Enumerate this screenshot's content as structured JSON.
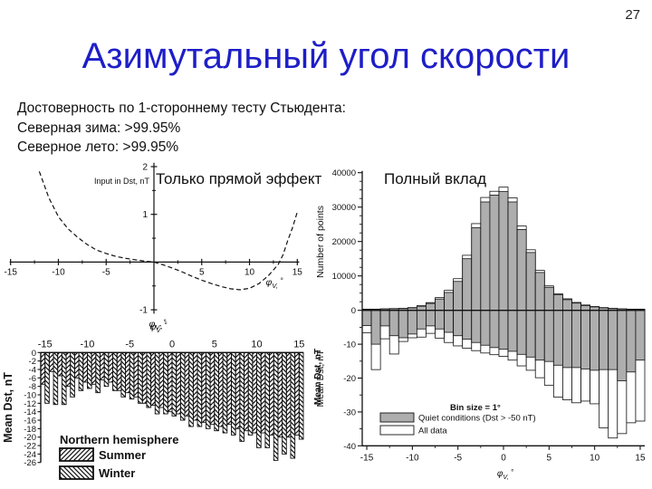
{
  "page": {
    "number": "27",
    "title": "Азимутальный угол скорости",
    "title_color": "#1e1ec8"
  },
  "stats": {
    "lines": [
      "Достоверность по 1-стороннему тесту Стьюдента:",
      "Северная зима: >99.95%",
      "Северное лето: >99.95%"
    ]
  },
  "labels": {
    "direct_effect": "Только прямой эффект",
    "full_contribution": "Полный вклад"
  },
  "chart_data": [
    {
      "id": "input_curve",
      "type": "line",
      "style": "dashed",
      "ylabel": "Input in Dst, nT",
      "xlabel": {
        "base": "φ",
        "sub": "V,",
        "suffix": " °"
      },
      "xlabel_bottom": {
        "base": "φ",
        "sub": "V'",
        "suffix": " °"
      },
      "xlim": [
        -15,
        15
      ],
      "ylim": [
        -1.1,
        2.1
      ],
      "xtick_labels": [
        "-15",
        "-10",
        "-5",
        "5",
        "10",
        "15"
      ],
      "xtick_vals": [
        -15,
        -10,
        -5,
        5,
        10,
        15
      ],
      "ytick_labels": [
        "2",
        "1",
        "-1"
      ],
      "ytick_vals": [
        2,
        1,
        -1
      ],
      "x": [
        -12,
        -11,
        -10,
        -9,
        -8,
        -7,
        -6,
        -5,
        -4,
        -3,
        -2,
        -1,
        0,
        1,
        2,
        3,
        4,
        5,
        6,
        7,
        8,
        9,
        10,
        11,
        12,
        13,
        13.5,
        14,
        14.5,
        15
      ],
      "y": [
        1.9,
        1.35,
        0.95,
        0.7,
        0.52,
        0.37,
        0.25,
        0.18,
        0.12,
        0.08,
        0.05,
        0.02,
        0,
        -0.06,
        -0.13,
        -0.21,
        -0.3,
        -0.38,
        -0.45,
        -0.51,
        -0.56,
        -0.58,
        -0.55,
        -0.45,
        -0.28,
        -0.05,
        0.15,
        0.45,
        0.72,
        1.05
      ]
    },
    {
      "id": "hemisphere_bars",
      "type": "bar",
      "ylabel": "Mean Dst, nT",
      "ylabel_right": "Mean Dst, nT",
      "xlabel": {
        "base": "φ",
        "sub": "V'",
        "suffix": " °"
      },
      "xlim": [
        -15,
        15
      ],
      "ylim": [
        -26,
        0
      ],
      "xtick_labels": [
        "-15",
        "-10",
        "-5",
        "0",
        "5",
        "10",
        "15"
      ],
      "xtick_vals": [
        -15,
        -10,
        -5,
        0,
        5,
        10,
        15
      ],
      "ytick_labels": [
        "0",
        "-2",
        "-4",
        "-6",
        "-8",
        "-10",
        "-12",
        "-14",
        "-16",
        "-18",
        "-20",
        "-22",
        "-24",
        "-26"
      ],
      "ytick_vals": [
        0,
        -2,
        -4,
        -6,
        -8,
        -10,
        -12,
        -14,
        -16,
        -18,
        -20,
        -22,
        -24,
        -26
      ],
      "legend_title": "Northern hemisphere",
      "categories": [
        -15,
        -14,
        -13,
        -12,
        -11,
        -10,
        -9,
        -8,
        -7,
        -6,
        -5,
        -4,
        -3,
        -2,
        -1,
        0,
        1,
        2,
        3,
        4,
        5,
        6,
        7,
        8,
        9,
        10,
        11,
        12,
        13,
        14,
        15
      ],
      "series": [
        {
          "name": "Summer",
          "hatch": "forward",
          "values": [
            -7.5,
            -4.5,
            -5.5,
            -8,
            -6,
            -7,
            -7.5,
            -6.5,
            -7,
            -9,
            -9.5,
            -10.5,
            -12,
            -12.5,
            -13,
            -14,
            -14.5,
            -15,
            -16,
            -16.5,
            -17,
            -17.5,
            -17,
            -18,
            -18.5,
            -19,
            -19,
            -19.5,
            -20,
            -20,
            -19.5
          ]
        },
        {
          "name": "Winter",
          "hatch": "backward",
          "values": [
            -12,
            -12.3,
            -12.3,
            -10.5,
            -9,
            -8.5,
            -9.5,
            -8,
            -9,
            -10.5,
            -11,
            -12,
            -13,
            -14.5,
            -14.5,
            -15,
            -16,
            -17.5,
            -17.5,
            -18,
            -18.5,
            -19,
            -19.5,
            -21,
            -19.5,
            -22.5,
            -22.5,
            -25.5,
            -24,
            -25,
            -20.5
          ]
        }
      ]
    },
    {
      "id": "full_contribution",
      "type": "bar",
      "ylabel_top": "Number of points",
      "ylabel_bottom": "Mean Dst, nT",
      "xlabel": {
        "base": "φ",
        "sub": "V,",
        "suffix": " °"
      },
      "xlim": [
        -15,
        15
      ],
      "count_ylim": [
        0,
        40000
      ],
      "dst_ylim": [
        -40,
        0
      ],
      "xtick_labels": [
        "-15",
        "-10",
        "-5",
        "0",
        "5",
        "10",
        "15"
      ],
      "xtick_vals": [
        -15,
        -10,
        -5,
        0,
        5,
        10,
        15
      ],
      "count_tick_labels": [
        "40000",
        "30000",
        "20000",
        "10000",
        "0"
      ],
      "count_tick_vals": [
        40000,
        30000,
        20000,
        10000,
        0
      ],
      "dst_tick_labels": [
        "-10",
        "-20",
        "-30",
        "-40"
      ],
      "dst_tick_vals": [
        -10,
        -20,
        -30,
        -40
      ],
      "bar_color": "#aeaeae",
      "legend": {
        "title": "Bin size = 1°",
        "quiet": "Quiet conditions (Dst > -50 nT)",
        "all": "All data"
      },
      "categories": [
        -15,
        -14,
        -13,
        -12,
        -11,
        -10,
        -9,
        -8,
        -7,
        -6,
        -5,
        -4,
        -3,
        -2,
        -1,
        0,
        1,
        2,
        3,
        4,
        5,
        6,
        7,
        8,
        9,
        10,
        11,
        12,
        13,
        14,
        15
      ],
      "counts_quiet": [
        300,
        300,
        400,
        450,
        500,
        700,
        1200,
        2000,
        3300,
        5200,
        8400,
        15000,
        24000,
        31500,
        33500,
        34500,
        31500,
        23500,
        16800,
        11000,
        6700,
        4500,
        3100,
        2100,
        1400,
        1000,
        700,
        500,
        400,
        300,
        300
      ],
      "counts_all": [
        350,
        350,
        450,
        520,
        580,
        800,
        1350,
        2250,
        3700,
        5800,
        9200,
        16000,
        25200,
        32800,
        34600,
        35800,
        32700,
        24500,
        17600,
        11600,
        7100,
        4800,
        3350,
        2300,
        1550,
        1100,
        800,
        580,
        450,
        350,
        350
      ],
      "dst_quiet": [
        -4.5,
        -10,
        -4.6,
        -7.5,
        -8.1,
        -7,
        -5.5,
        -4.6,
        -5.5,
        -6.5,
        -7.5,
        -8.5,
        -9.5,
        -10.3,
        -11,
        -11.5,
        -12.1,
        -13,
        -13.8,
        -14.7,
        -15.1,
        -16.2,
        -16.9,
        -16.9,
        -17.3,
        -17.7,
        -17.5,
        -17.5,
        -20.8,
        -18.2,
        -14.7
      ],
      "dst_all": [
        -6.6,
        -17.5,
        -8.4,
        -12.9,
        -9.2,
        -8.1,
        -7.9,
        -6.8,
        -8.2,
        -9.5,
        -10.5,
        -11.2,
        -11.9,
        -12.6,
        -13.1,
        -13.6,
        -14.7,
        -16.4,
        -17.7,
        -19.9,
        -22.1,
        -25.6,
        -26.4,
        -27.3,
        -26.8,
        -27.6,
        -34.7,
        -37.7,
        -36.4,
        -33.2,
        -32.7
      ]
    }
  ]
}
